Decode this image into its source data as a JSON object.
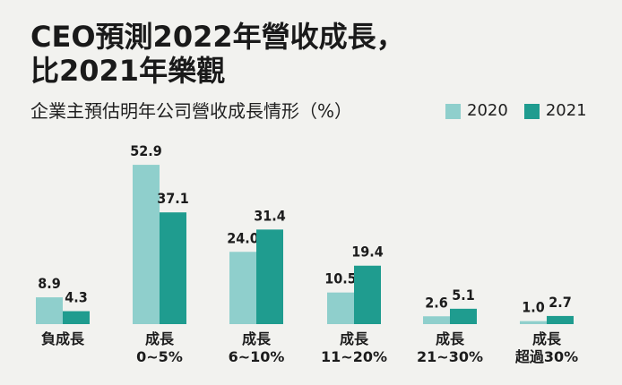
{
  "header": {
    "title_line1": "CEO預測2022年營收成長，",
    "title_line2": "比2021年樂觀",
    "subtitle": "企業主預估明年公司營收成長情形（%）"
  },
  "colors": {
    "background": "#f2f2ef",
    "series_2020": "#8fcfcc",
    "series_2021": "#1f9c8f",
    "text": "#1c1c1c"
  },
  "chart_data": {
    "type": "bar",
    "title": "企業主預估明年公司營收成長情形（%）",
    "xlabel": "",
    "ylabel": "%",
    "ylim": [
      0,
      55
    ],
    "grid": false,
    "legend_position": "top-right",
    "categories": [
      [
        "負成長"
      ],
      [
        "成長",
        "0~5%"
      ],
      [
        "成長",
        "6~10%"
      ],
      [
        "成長",
        "11~20%"
      ],
      [
        "成長",
        "21~30%"
      ],
      [
        "成長",
        "超過30%"
      ]
    ],
    "series": [
      {
        "name": "2020",
        "color": "#8fcfcc",
        "values": [
          8.9,
          52.9,
          24.0,
          10.5,
          2.6,
          1.0
        ],
        "labels": [
          "8.9",
          "52.9",
          "24.0",
          "10.5",
          "2.6",
          "1.0"
        ]
      },
      {
        "name": "2021",
        "color": "#1f9c8f",
        "values": [
          4.3,
          37.1,
          31.4,
          19.4,
          5.1,
          2.7
        ],
        "labels": [
          "4.3",
          "37.1",
          "31.4",
          "19.4",
          "5.1",
          "2.7"
        ]
      }
    ]
  }
}
